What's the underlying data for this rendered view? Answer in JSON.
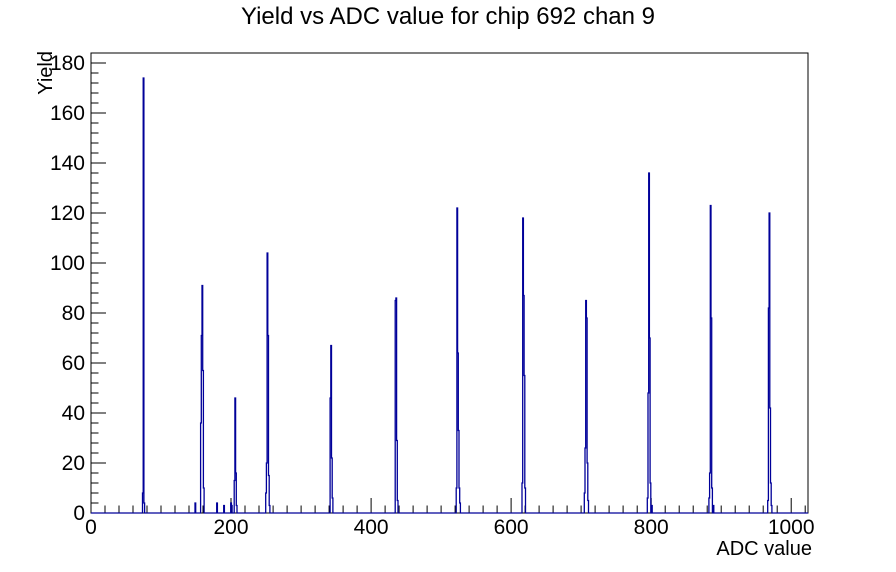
{
  "page": {
    "background": "#ffffff"
  },
  "chart_data": {
    "type": "line",
    "style": "step-histogram",
    "title": "Yield vs ADC value for chip 692 chan 9",
    "xlabel": "ADC value",
    "ylabel": "Yield",
    "xlim": [
      0,
      1024
    ],
    "ylim": [
      0,
      184
    ],
    "x_ticks": [
      0,
      200,
      400,
      600,
      800,
      1000
    ],
    "y_ticks": [
      0,
      20,
      40,
      60,
      80,
      100,
      120,
      140,
      160,
      180
    ],
    "x_minor_step": 20,
    "y_minor_step": 4,
    "grid": false,
    "legend": false,
    "line_color": "#000099",
    "axis_color": "#000000",
    "bin_width": 1,
    "bins": [
      [
        74,
        8
      ],
      [
        75,
        174
      ],
      [
        76,
        4
      ],
      [
        149,
        4
      ],
      [
        157,
        36
      ],
      [
        158,
        71
      ],
      [
        159,
        91
      ],
      [
        160,
        57
      ],
      [
        161,
        10
      ],
      [
        180,
        4
      ],
      [
        190,
        3
      ],
      [
        200,
        4
      ],
      [
        201,
        3
      ],
      [
        205,
        13
      ],
      [
        206,
        46
      ],
      [
        207,
        16
      ],
      [
        208,
        3
      ],
      [
        250,
        8
      ],
      [
        251,
        20
      ],
      [
        252,
        104
      ],
      [
        253,
        71
      ],
      [
        254,
        15
      ],
      [
        255,
        3
      ],
      [
        342,
        46
      ],
      [
        343,
        67
      ],
      [
        344,
        22
      ],
      [
        345,
        6
      ],
      [
        435,
        85
      ],
      [
        436,
        86
      ],
      [
        437,
        29
      ],
      [
        438,
        5
      ],
      [
        522,
        10
      ],
      [
        523,
        122
      ],
      [
        524,
        64
      ],
      [
        525,
        33
      ],
      [
        526,
        10
      ],
      [
        527,
        4
      ],
      [
        616,
        12
      ],
      [
        617,
        118
      ],
      [
        618,
        87
      ],
      [
        619,
        55
      ],
      [
        620,
        10
      ],
      [
        705,
        8
      ],
      [
        706,
        26
      ],
      [
        707,
        85
      ],
      [
        708,
        78
      ],
      [
        709,
        20
      ],
      [
        710,
        5
      ],
      [
        795,
        6
      ],
      [
        796,
        48
      ],
      [
        797,
        136
      ],
      [
        798,
        70
      ],
      [
        799,
        12
      ],
      [
        801,
        3
      ],
      [
        883,
        6
      ],
      [
        884,
        16
      ],
      [
        885,
        123
      ],
      [
        886,
        78
      ],
      [
        887,
        10
      ],
      [
        889,
        3
      ],
      [
        967,
        5
      ],
      [
        968,
        82
      ],
      [
        969,
        120
      ],
      [
        970,
        42
      ],
      [
        971,
        12
      ],
      [
        972,
        3
      ]
    ]
  }
}
